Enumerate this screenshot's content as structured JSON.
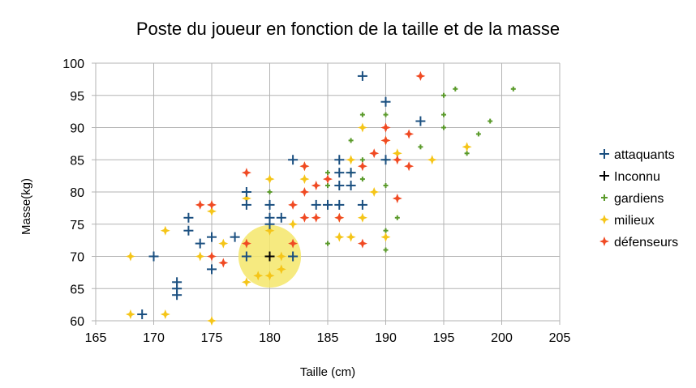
{
  "chart_data": {
    "type": "scatter",
    "title": "Poste du joueur en fonction de la taille et de la masse",
    "xlabel": "Taille (cm)",
    "ylabel": "Masse(kg)",
    "xlim": [
      165,
      205
    ],
    "ylim": [
      60,
      100
    ],
    "x_ticks": [
      "165",
      "170",
      "175",
      "180",
      "185",
      "190",
      "195",
      "200",
      "205"
    ],
    "y_ticks": [
      "60",
      "65",
      "70",
      "75",
      "80",
      "85",
      "90",
      "95",
      "100"
    ],
    "grid": true,
    "legend_position": "right",
    "highlight": {
      "x": 180,
      "y": 70,
      "radius_data_x": 2.7,
      "color": "#f5e66a"
    },
    "series": [
      {
        "name": "attaquants",
        "color": "#1a4f80",
        "points": [
          [
            188,
            98
          ],
          [
            190,
            94
          ],
          [
            193,
            91
          ],
          [
            182,
            85
          ],
          [
            186,
            85
          ],
          [
            190,
            85
          ],
          [
            186,
            83
          ],
          [
            187,
            83
          ],
          [
            186,
            81
          ],
          [
            187,
            81
          ],
          [
            178,
            80
          ],
          [
            178,
            78
          ],
          [
            180,
            78
          ],
          [
            184,
            78
          ],
          [
            185,
            78
          ],
          [
            186,
            78
          ],
          [
            188,
            78
          ],
          [
            173,
            76
          ],
          [
            180,
            76
          ],
          [
            181,
            76
          ],
          [
            180,
            75
          ],
          [
            177,
            73
          ],
          [
            173,
            74
          ],
          [
            175,
            73
          ],
          [
            174,
            72
          ],
          [
            170,
            70
          ],
          [
            178,
            70
          ],
          [
            180,
            70
          ],
          [
            182,
            70
          ],
          [
            175,
            68
          ],
          [
            172,
            66
          ],
          [
            172,
            65
          ],
          [
            172,
            64
          ],
          [
            169,
            61
          ]
        ]
      },
      {
        "name": "Inconnu",
        "color": "#000000",
        "points": [
          [
            180,
            70
          ]
        ]
      },
      {
        "name": "gardiens",
        "color": "#5a9a2a",
        "points": [
          [
            196,
            96
          ],
          [
            201,
            96
          ],
          [
            195,
            95
          ],
          [
            195,
            92
          ],
          [
            188,
            92
          ],
          [
            190,
            92
          ],
          [
            199,
            91
          ],
          [
            195,
            90
          ],
          [
            193,
            87
          ],
          [
            198,
            89
          ],
          [
            187,
            88
          ],
          [
            197,
            86
          ],
          [
            190,
            85
          ],
          [
            185,
            83
          ],
          [
            187,
            83
          ],
          [
            188,
            82
          ],
          [
            185,
            81
          ],
          [
            190,
            81
          ],
          [
            180,
            80
          ],
          [
            189,
            80
          ],
          [
            183,
            80
          ],
          [
            191,
            76
          ],
          [
            190,
            74
          ],
          [
            185,
            72
          ],
          [
            190,
            71
          ],
          [
            188,
            85
          ]
        ]
      },
      {
        "name": "milieux",
        "color": "#f5c518",
        "points": [
          [
            188,
            90
          ],
          [
            190,
            88
          ],
          [
            191,
            86
          ],
          [
            187,
            85
          ],
          [
            194,
            85
          ],
          [
            197,
            87
          ],
          [
            180,
            82
          ],
          [
            183,
            82
          ],
          [
            183,
            84
          ],
          [
            189,
            80
          ],
          [
            178,
            79
          ],
          [
            175,
            77
          ],
          [
            186,
            76
          ],
          [
            188,
            76
          ],
          [
            182,
            75
          ],
          [
            180,
            74
          ],
          [
            171,
            74
          ],
          [
            176,
            72
          ],
          [
            174,
            70
          ],
          [
            181,
            70
          ],
          [
            181,
            68
          ],
          [
            179,
            67
          ],
          [
            180,
            67
          ],
          [
            178,
            66
          ],
          [
            186,
            73
          ],
          [
            187,
            73
          ],
          [
            190,
            73
          ],
          [
            168,
            70
          ],
          [
            168,
            61
          ],
          [
            171,
            61
          ],
          [
            175,
            60
          ]
        ]
      },
      {
        "name": "défenseurs",
        "color": "#f04a23",
        "points": [
          [
            193,
            98
          ],
          [
            190,
            90
          ],
          [
            192,
            89
          ],
          [
            190,
            88
          ],
          [
            189,
            86
          ],
          [
            188,
            84
          ],
          [
            191,
            85
          ],
          [
            192,
            84
          ],
          [
            178,
            83
          ],
          [
            183,
            84
          ],
          [
            184,
            81
          ],
          [
            185,
            82
          ],
          [
            183,
            80
          ],
          [
            191,
            79
          ],
          [
            174,
            78
          ],
          [
            175,
            78
          ],
          [
            182,
            78
          ],
          [
            183,
            76
          ],
          [
            184,
            76
          ],
          [
            186,
            76
          ],
          [
            178,
            72
          ],
          [
            182,
            72
          ],
          [
            188,
            72
          ],
          [
            175,
            70
          ],
          [
            176,
            69
          ],
          [
            190,
            90
          ]
        ]
      }
    ]
  }
}
